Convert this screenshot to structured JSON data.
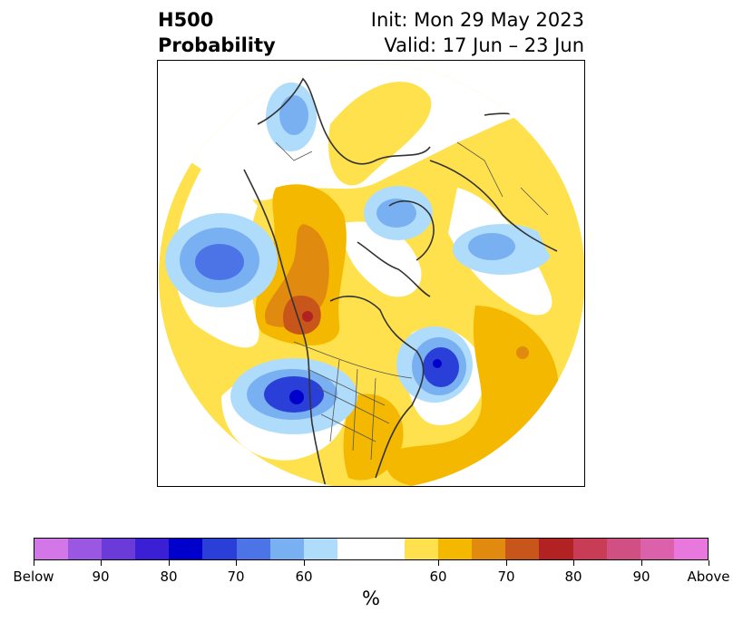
{
  "header": {
    "title_line1": "H500",
    "title_line2": "Probability",
    "init_line": "Init: Mon 29 May 2023",
    "valid_line": "Valid: 17 Jun – 23 Jun"
  },
  "colorbar": {
    "unit": "%",
    "segments": [
      {
        "color": "#d376e8",
        "weight": 1
      },
      {
        "color": "#9a57e1",
        "weight": 1
      },
      {
        "color": "#6a3bd9",
        "weight": 1
      },
      {
        "color": "#3b1fd4",
        "weight": 1
      },
      {
        "color": "#0000cc",
        "weight": 1
      },
      {
        "color": "#2a3fd8",
        "weight": 1
      },
      {
        "color": "#4d74e6",
        "weight": 1
      },
      {
        "color": "#78b0f2",
        "weight": 1
      },
      {
        "color": "#b0dcfb",
        "weight": 1
      },
      {
        "color": "#ffffff",
        "weight": 2
      },
      {
        "color": "#ffe14d",
        "weight": 1
      },
      {
        "color": "#f4b800",
        "weight": 1
      },
      {
        "color": "#e08a10",
        "weight": 1
      },
      {
        "color": "#c8561a",
        "weight": 1
      },
      {
        "color": "#b22222",
        "weight": 1
      },
      {
        "color": "#c83c55",
        "weight": 1
      },
      {
        "color": "#d05084",
        "weight": 1
      },
      {
        "color": "#db62aa",
        "weight": 1
      },
      {
        "color": "#e878dd",
        "weight": 1
      }
    ],
    "tick_labels": [
      "Below",
      "90",
      "80",
      "70",
      "60",
      "60",
      "70",
      "80",
      "90",
      "Above"
    ]
  },
  "map": {
    "projection": "north-polar-stereographic",
    "anomaly_colors": {
      "below_light": "#b0dcfb",
      "below_mid": "#78b0f2",
      "below_strong": "#4d74e6",
      "below_deep": "#0000cc",
      "above_light": "#ffe14d",
      "above_mid": "#f4b800",
      "above_strong": "#e08a10",
      "above_deep": "#c8561a",
      "above_max": "#b22222"
    }
  }
}
